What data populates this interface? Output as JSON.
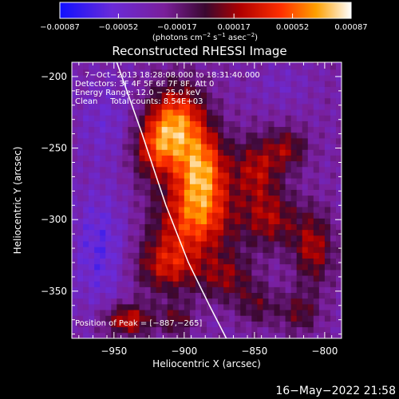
{
  "chart_data": {
    "type": "heatmap",
    "title": "Reconstructed RHESSI Image",
    "xlabel": "Heliocentric X (arcsec)",
    "ylabel": "Heliocentric Y (arcsec)",
    "xlim": [
      -980,
      -788
    ],
    "ylim": [
      -383,
      -190
    ],
    "x_ticks": [
      -950,
      -900,
      -850,
      -800
    ],
    "x_tick_labels": [
      "−950",
      "−900",
      "−850",
      "−800"
    ],
    "y_ticks": [
      -200,
      -250,
      -300,
      -350
    ],
    "y_tick_labels": [
      "−200",
      "−250",
      "−300",
      "−350"
    ],
    "colorbar": {
      "range": [
        -0.00087,
        0.00087
      ],
      "ticks": [
        -0.00087,
        -0.00052,
        -0.00017,
        0.00017,
        0.00052,
        0.00087
      ],
      "tick_labels": [
        "−0.00087",
        "−0.00052",
        "−0.00017",
        "0.00017",
        "0.00052",
        "0.00087"
      ],
      "unit_prefix": "(photons cm",
      "unit_exp1": "−2",
      "unit_mid1": " s",
      "unit_exp2": "−1",
      "unit_mid2": " asec",
      "unit_exp3": "−2",
      "unit_suffix": ")"
    },
    "info_lines": [
      "7−Oct−2013 18:28:08.000 to 18:31:40.000",
      "Detectors: 3F 4F 5F 6F 7F 8F, Att 0",
      "Energy Range: 12.0 − 25.0 keV",
      "Clean     Total counts: 8.54E+03"
    ],
    "peak_label": "Position of Peak = [−887,−265]",
    "peak": [
      -887,
      -265
    ],
    "limb_curve": [
      [
        -948,
        -190
      ],
      [
        -930,
        -240
      ],
      [
        -913,
        -290
      ],
      [
        -897,
        -330
      ],
      [
        -882,
        -360
      ],
      [
        -870,
        -383
      ]
    ],
    "sources": [
      {
        "x": -888,
        "y": -265,
        "amp": 0.00087,
        "sx": 13,
        "sy": 20
      },
      {
        "x": -905,
        "y": -230,
        "amp": 0.00075,
        "sx": 14,
        "sy": 18
      },
      {
        "x": -920,
        "y": -250,
        "amp": 0.0006,
        "sx": 12,
        "sy": 16
      },
      {
        "x": -892,
        "y": -300,
        "amp": 0.00068,
        "sx": 20,
        "sy": 18
      },
      {
        "x": -912,
        "y": -332,
        "amp": 0.00055,
        "sx": 16,
        "sy": 14
      },
      {
        "x": -848,
        "y": -265,
        "amp": 0.0005,
        "sx": 12,
        "sy": 16
      },
      {
        "x": -826,
        "y": -250,
        "amp": 0.0004,
        "sx": 10,
        "sy": 10
      },
      {
        "x": -838,
        "y": -300,
        "amp": 0.00045,
        "sx": 14,
        "sy": 14
      },
      {
        "x": -808,
        "y": -320,
        "amp": 0.0005,
        "sx": 10,
        "sy": 18
      },
      {
        "x": -870,
        "y": -340,
        "amp": 0.0004,
        "sx": 14,
        "sy": 12
      },
      {
        "x": -848,
        "y": -360,
        "amp": 0.0003,
        "sx": 10,
        "sy": 10
      },
      {
        "x": -940,
        "y": -370,
        "amp": 0.0006,
        "sx": 12,
        "sy": 8
      },
      {
        "x": -905,
        "y": -370,
        "amp": 0.00035,
        "sx": 8,
        "sy": 8
      },
      {
        "x": -818,
        "y": -365,
        "amp": 0.00035,
        "sx": 10,
        "sy": 10
      }
    ],
    "negatives": [
      {
        "x": -960,
        "y": -320,
        "amp": 0.0003,
        "sx": 14,
        "sy": 30
      },
      {
        "x": -955,
        "y": -230,
        "amp": 0.00018,
        "sx": 16,
        "sy": 20
      },
      {
        "x": -830,
        "y": -205,
        "amp": 0.00012,
        "sx": 14,
        "sy": 10
      }
    ]
  },
  "timestamp": "16−May−2022 21:58"
}
